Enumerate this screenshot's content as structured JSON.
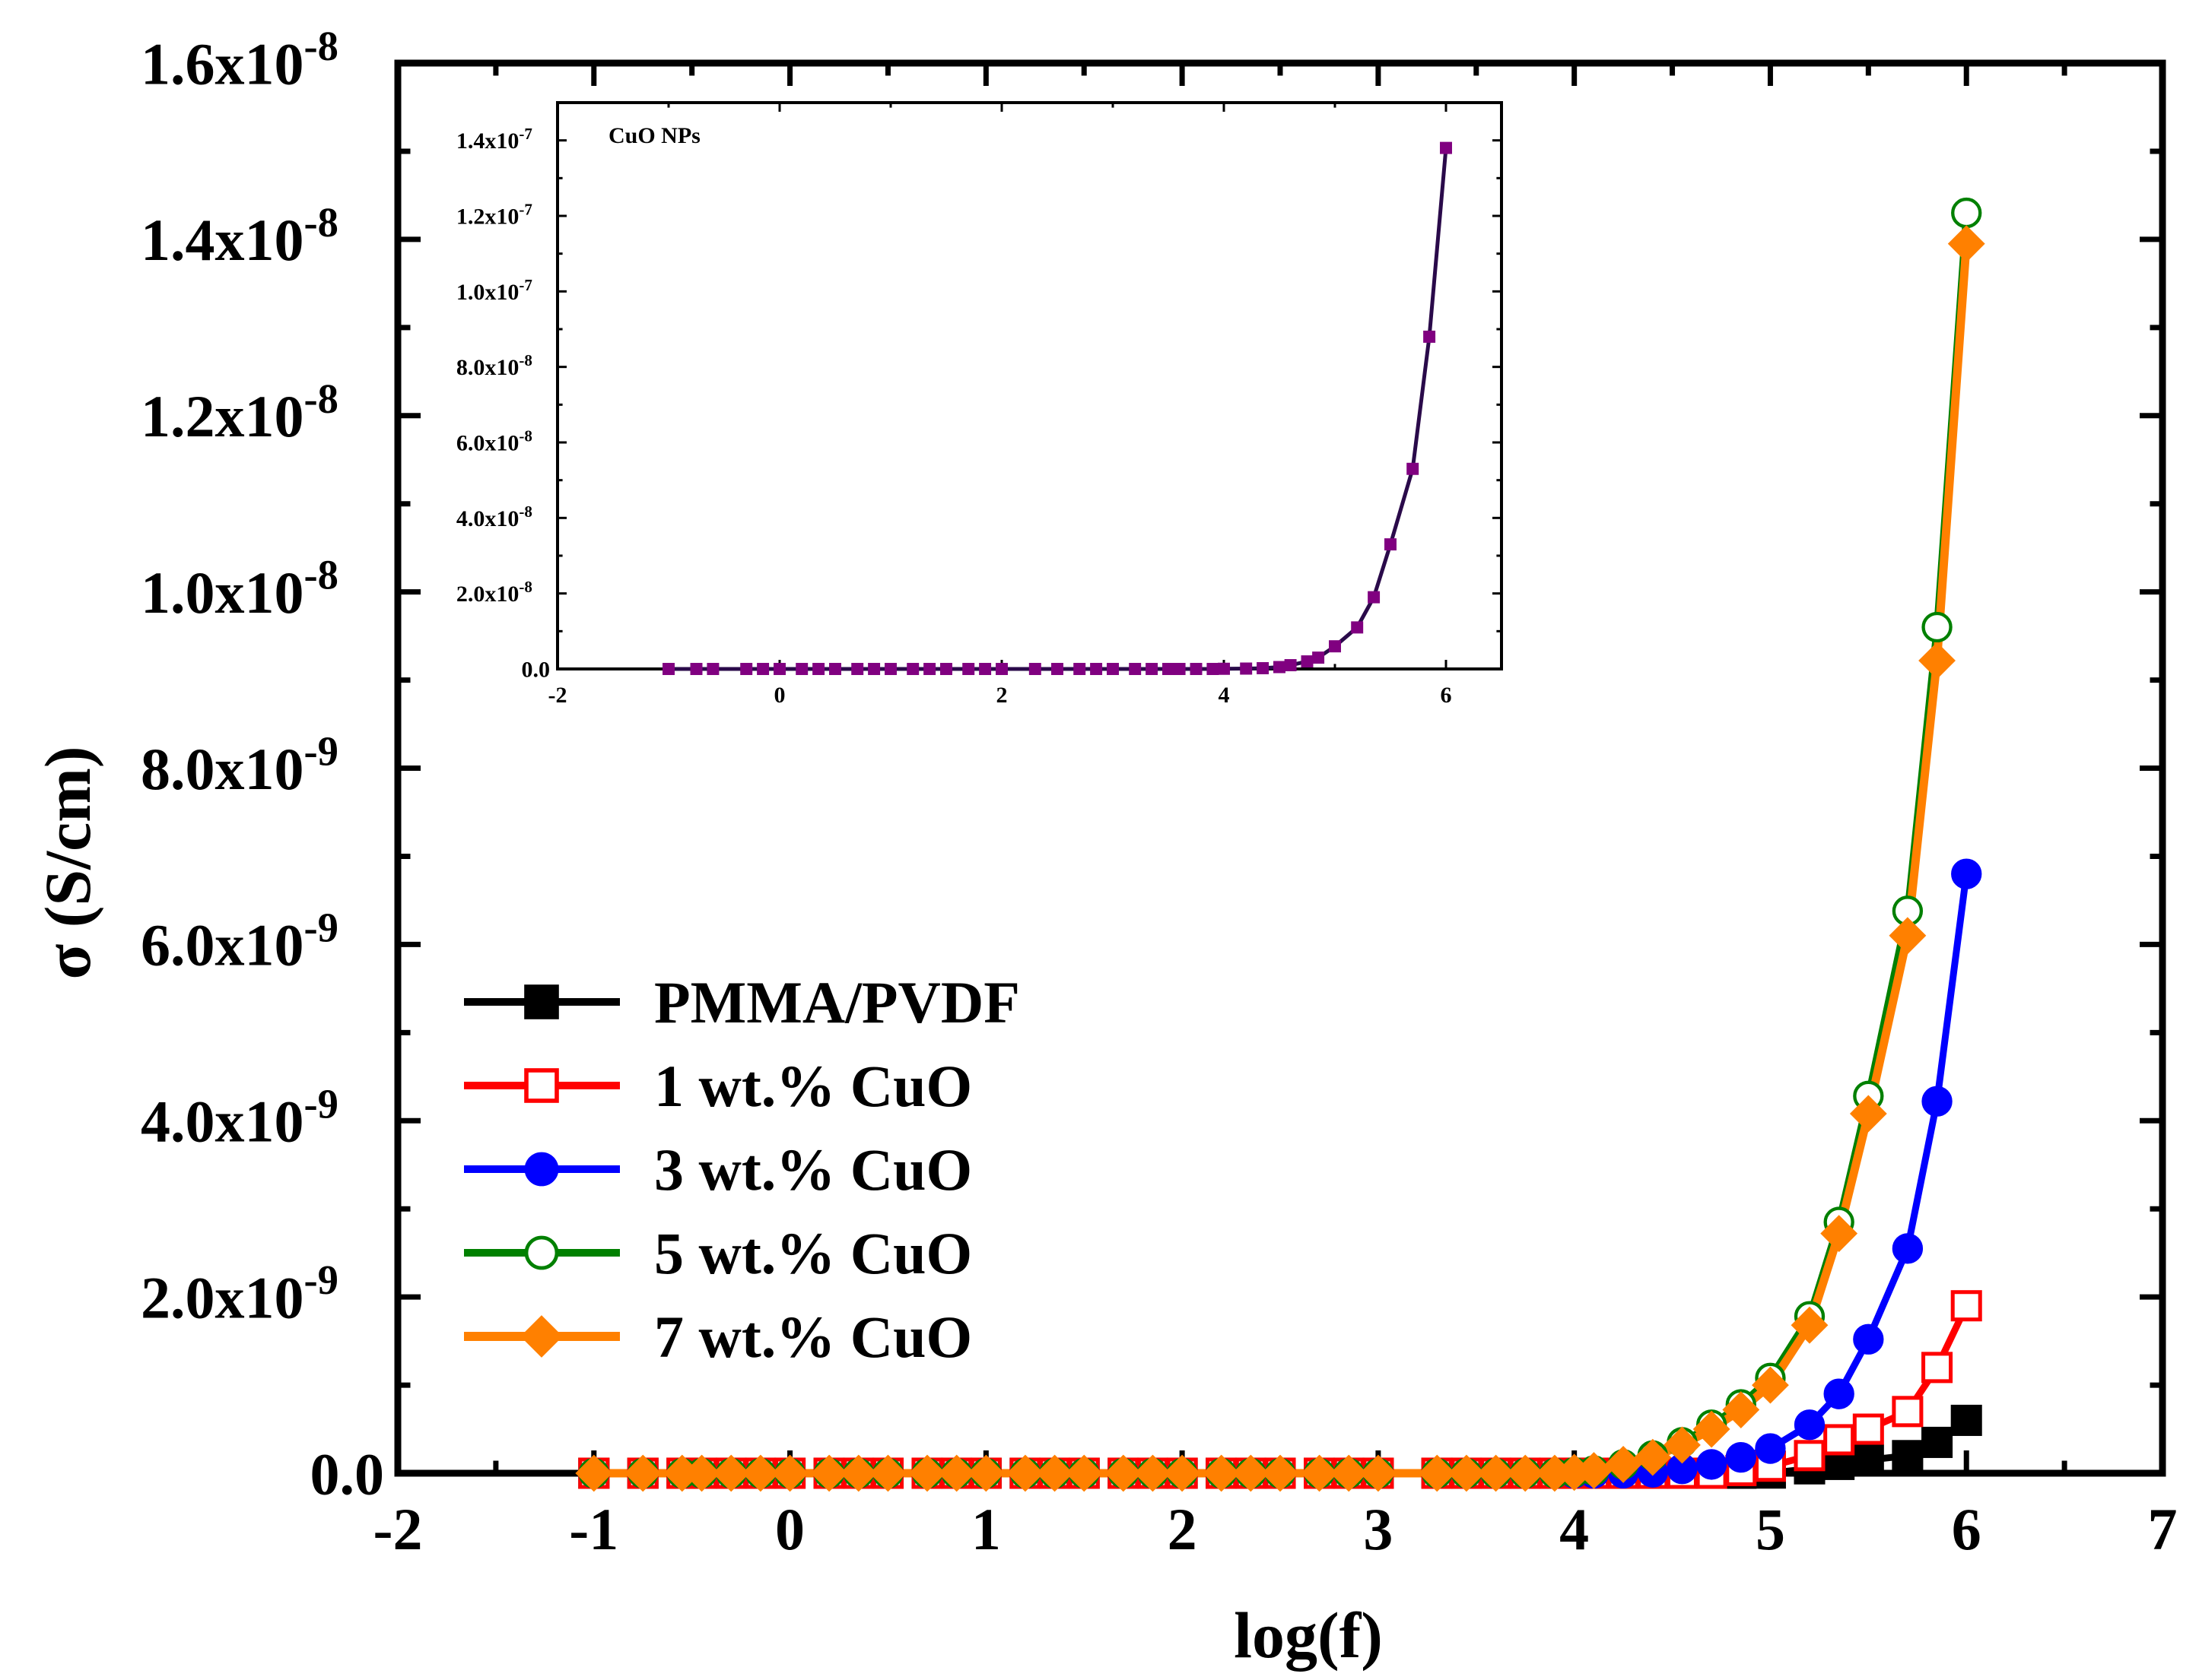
{
  "chart_data": {
    "main": {
      "type": "line",
      "xlabel": "log(f)",
      "ylabel": "σ (S/cm)",
      "xlim": [
        -2,
        7
      ],
      "ylim": [
        0,
        1.6e-08
      ],
      "x_ticks": [
        {
          "value": -2,
          "label": "-2"
        },
        {
          "value": -1,
          "label": "-1"
        },
        {
          "value": 0,
          "label": "0"
        },
        {
          "value": 1,
          "label": "1"
        },
        {
          "value": 2,
          "label": "2"
        },
        {
          "value": 3,
          "label": "3"
        },
        {
          "value": 4,
          "label": "4"
        },
        {
          "value": 5,
          "label": "5"
        },
        {
          "value": 6,
          "label": "6"
        },
        {
          "value": 7,
          "label": "7"
        }
      ],
      "y_ticks": [
        {
          "value": 0,
          "mantissa": "0.0",
          "exp": ""
        },
        {
          "value": 2e-09,
          "mantissa": "2.0x10",
          "exp": "-9"
        },
        {
          "value": 4e-09,
          "mantissa": "4.0x10",
          "exp": "-9"
        },
        {
          "value": 6e-09,
          "mantissa": "6.0x10",
          "exp": "-9"
        },
        {
          "value": 8e-09,
          "mantissa": "8.0x10",
          "exp": "-9"
        },
        {
          "value": 1e-08,
          "mantissa": "1.0x10",
          "exp": "-8"
        },
        {
          "value": 1.2e-08,
          "mantissa": "1.2x10",
          "exp": "-8"
        },
        {
          "value": 1.4e-08,
          "mantissa": "1.4x10",
          "exp": "-8"
        },
        {
          "value": 1.6e-08,
          "mantissa": "1.6x10",
          "exp": "-8"
        }
      ],
      "legend_position": "bottom-left",
      "x": [
        -1.0,
        -0.75,
        -0.55,
        -0.45,
        -0.3,
        -0.15,
        0.0,
        0.2,
        0.35,
        0.5,
        0.7,
        0.85,
        1.0,
        1.2,
        1.35,
        1.5,
        1.7,
        1.85,
        2.0,
        2.2,
        2.35,
        2.5,
        2.7,
        2.85,
        3.0,
        3.3,
        3.45,
        3.6,
        3.75,
        3.9,
        4.0,
        4.1,
        4.25,
        4.4,
        4.55,
        4.7,
        4.85,
        5.0,
        5.2,
        5.35,
        5.5,
        5.7,
        5.85,
        6.0
      ],
      "series": [
        {
          "name": "PMMA/PVDF",
          "color": "#000000",
          "marker": "square-filled",
          "values": [
            0,
            0,
            0,
            0,
            0,
            0,
            0,
            0,
            0,
            0,
            0,
            0,
            0,
            0,
            0,
            0,
            0,
            0,
            0,
            0,
            0,
            0,
            0,
            0,
            0,
            0,
            0,
            0,
            0,
            0,
            0,
            0,
            0,
            0,
            0,
            0,
            0,
            2e-12,
            5e-11,
            1e-10,
            1.5e-10,
            2e-10,
            3.5e-10,
            6e-10
          ]
        },
        {
          "name": "1 wt.% CuO",
          "color": "#ff0000",
          "marker": "square-open",
          "values": [
            0,
            0,
            0,
            0,
            0,
            0,
            0,
            0,
            0,
            0,
            0,
            0,
            0,
            0,
            0,
            0,
            0,
            0,
            0,
            0,
            0,
            0,
            0,
            0,
            0,
            0,
            0,
            0,
            0,
            0,
            0,
            0,
            0,
            0,
            0,
            0,
            3e-11,
            8e-11,
            2e-10,
            3.8e-10,
            5e-10,
            7e-10,
            1.2e-09,
            1.9e-09
          ]
        },
        {
          "name": "3 wt.% CuO",
          "color": "#0000ff",
          "marker": "circle-filled",
          "values": [
            0,
            0,
            0,
            0,
            0,
            0,
            0,
            0,
            0,
            0,
            0,
            0,
            0,
            0,
            0,
            0,
            0,
            0,
            0,
            0,
            0,
            0,
            0,
            0,
            0,
            0,
            0,
            0,
            0,
            0,
            0,
            0,
            0,
            1e-11,
            5e-11,
            1e-10,
            1.8e-10,
            2.8e-10,
            5.5e-10,
            9e-10,
            1.52e-09,
            2.55e-09,
            4.22e-09,
            6.8e-09
          ]
        },
        {
          "name": "5 wt.% CuO",
          "color": "#008000",
          "marker": "circle-open",
          "values": [
            0,
            0,
            0,
            0,
            0,
            0,
            0,
            0,
            0,
            0,
            0,
            0,
            0,
            0,
            0,
            0,
            0,
            0,
            0,
            0,
            0,
            0,
            0,
            0,
            0,
            0,
            0,
            0,
            0,
            0,
            1e-11,
            3e-11,
            1e-10,
            2e-10,
            3.5e-10,
            5.5e-10,
            7.8e-10,
            1.08e-09,
            1.78e-09,
            2.85e-09,
            4.28e-09,
            6.38e-09,
            9.6e-09,
            1.43e-08
          ]
        },
        {
          "name": "7 wt.% CuO",
          "color": "#ff8000",
          "marker": "diamond-filled",
          "values": [
            0,
            0,
            0,
            0,
            0,
            0,
            0,
            0,
            0,
            0,
            0,
            0,
            0,
            0,
            0,
            0,
            0,
            0,
            0,
            0,
            0,
            0,
            0,
            0,
            0,
            0,
            0,
            0,
            0,
            0,
            1e-11,
            3e-11,
            1e-10,
            1.8e-10,
            3.2e-10,
            5e-10,
            7.2e-10,
            1e-09,
            1.68e-09,
            2.72e-09,
            4.08e-09,
            6.1e-09,
            9.22e-09,
            1.395e-08
          ]
        }
      ]
    },
    "inset": {
      "type": "line",
      "title": "CuO NPs",
      "xlim": [
        -2,
        6.5
      ],
      "ylim": [
        0,
        1.5e-07
      ],
      "x_ticks": [
        {
          "value": -2,
          "label": "-2"
        },
        {
          "value": 0,
          "label": "0"
        },
        {
          "value": 2,
          "label": "2"
        },
        {
          "value": 4,
          "label": "4"
        },
        {
          "value": 6,
          "label": "6"
        }
      ],
      "y_ticks": [
        {
          "value": 0,
          "mantissa": "0.0",
          "exp": ""
        },
        {
          "value": 2e-08,
          "mantissa": "2.0x10",
          "exp": "-8"
        },
        {
          "value": 4e-08,
          "mantissa": "4.0x10",
          "exp": "-8"
        },
        {
          "value": 6e-08,
          "mantissa": "6.0x10",
          "exp": "-8"
        },
        {
          "value": 8e-08,
          "mantissa": "8.0x10",
          "exp": "-8"
        },
        {
          "value": 1e-07,
          "mantissa": "1.0x10",
          "exp": "-7"
        },
        {
          "value": 1.2e-07,
          "mantissa": "1.2x10",
          "exp": "-7"
        },
        {
          "value": 1.4e-07,
          "mantissa": "1.4x10",
          "exp": "-7"
        }
      ],
      "series": [
        {
          "name": "CuO NPs",
          "color": "#800080",
          "line_color": "#2a0a4a",
          "marker": "square-filled",
          "x": [
            -1.0,
            -0.75,
            -0.6,
            -0.3,
            -0.15,
            0.0,
            0.2,
            0.35,
            0.5,
            0.7,
            0.85,
            1.0,
            1.2,
            1.35,
            1.5,
            1.7,
            1.85,
            2.0,
            2.3,
            2.5,
            2.7,
            2.85,
            3.0,
            3.2,
            3.35,
            3.5,
            3.6,
            3.75,
            3.9,
            4.0,
            4.2,
            4.35,
            4.5,
            4.6,
            4.75,
            4.85,
            5.0,
            5.2,
            5.35,
            5.5,
            5.7,
            5.85,
            6.0
          ],
          "values": [
            0,
            0,
            0,
            0,
            0,
            0,
            0,
            0,
            0,
            0,
            0,
            0,
            0,
            0,
            0,
            0,
            0,
            0,
            0,
            0,
            0,
            0,
            0,
            0,
            0,
            0,
            0,
            0,
            0,
            5e-11,
            1e-10,
            2e-10,
            5e-10,
            1e-09,
            2e-09,
            3e-09,
            6e-09,
            1.1e-08,
            1.9e-08,
            3.3e-08,
            5.3e-08,
            8.8e-08,
            1.38e-07
          ]
        }
      ]
    }
  }
}
